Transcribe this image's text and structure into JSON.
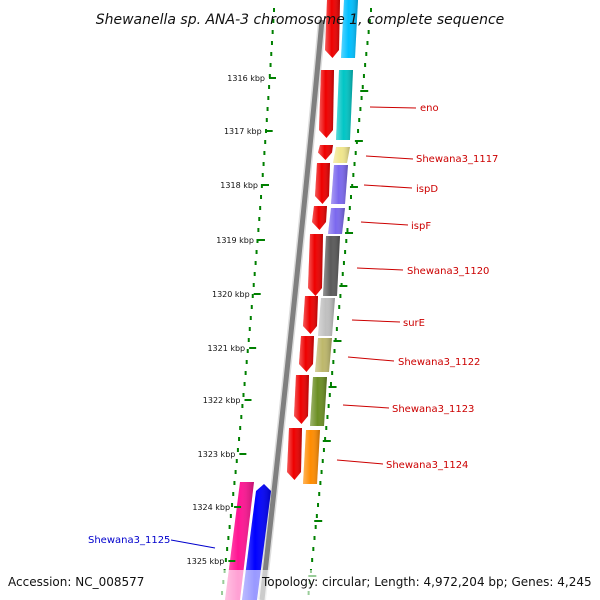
{
  "title": "Shewanella sp. ANA-3 chromosome 1, complete sequence",
  "accession": "Accession: NC_008577",
  "topology": "Topology: circular; Length: 4,972,204 bp; Genes: 4,245",
  "ticks": [
    "1316 kbp",
    "1317 kbp",
    "1318 kbp",
    "1319 kbp",
    "1320 kbp",
    "1321 kbp",
    "1322 kbp",
    "1323 kbp",
    "1324 kbp",
    "1325 kbp"
  ],
  "genes": [
    {
      "label": "",
      "color": "#00bfff"
    },
    {
      "label": "eno",
      "color": "#00c5c5",
      "label_color": "#cc0000"
    },
    {
      "label": "Shewana3_1117",
      "color": "#f0e68c",
      "label_color": "#cc0000"
    },
    {
      "label": "ispD",
      "color": "#7b68ee",
      "label_color": "#cc0000"
    },
    {
      "label": "ispF",
      "color": "#7b68ee",
      "label_color": "#cc0000"
    },
    {
      "label": "Shewana3_1120",
      "color": "#5a5a5a",
      "label_color": "#cc0000"
    },
    {
      "label": "surE",
      "color": "#c0c0c0",
      "label_color": "#cc0000"
    },
    {
      "label": "Shewana3_1122",
      "color": "#bdb76b",
      "label_color": "#cc0000"
    },
    {
      "label": "Shewana3_1123",
      "color": "#6b8e23",
      "label_color": "#cc0000"
    },
    {
      "label": "Shewana3_1124",
      "color": "#ff8c00",
      "label_color": "#cc0000"
    },
    {
      "label": "Shewana3_1125",
      "color": "#ff1493",
      "label_color": "#0000cc"
    }
  ],
  "colors": {
    "cds_strand": "#ee0000",
    "backbone": "#808080",
    "tick_marks": "#008000",
    "reverse_gene": "#0000ff"
  }
}
